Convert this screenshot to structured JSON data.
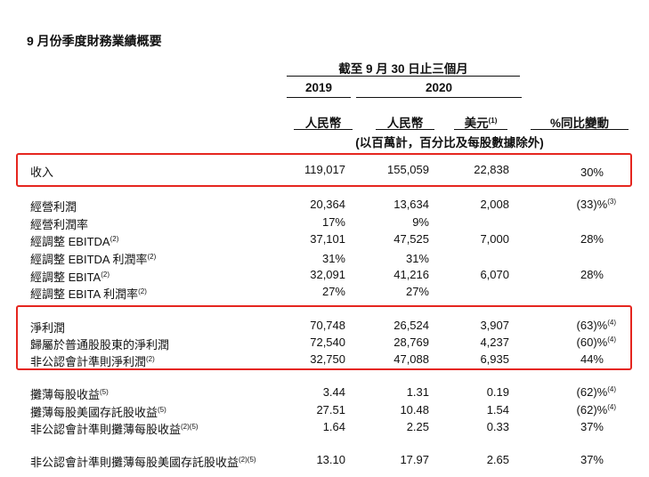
{
  "title": "9 月份季度財務業績概要",
  "header": {
    "period": "截至 9 月 30 日止三個月",
    "year_2019": "2019",
    "year_2020": "2020",
    "cur_rmb_2019": "人民幣",
    "cur_rmb_2020": "人民幣",
    "cur_usd": "美元",
    "cur_usd_note": "(1)",
    "yoy": "%同比變動",
    "units": "(以百萬計，百分比及每股數據除外)"
  },
  "rows": [
    {
      "label": "收入",
      "note": "",
      "v2019": "119,017",
      "v2020": "155,059",
      "usd": "22,838",
      "yoy": "30%",
      "yoy_note": ""
    },
    {
      "label": "經營利潤",
      "note": "",
      "v2019": "20,364",
      "v2020": "13,634",
      "usd": "2,008",
      "yoy": "(33)%",
      "yoy_note": "(3)"
    },
    {
      "label": "經營利潤率",
      "note": "",
      "v2019": "17%",
      "v2020": "9%",
      "usd": "",
      "yoy": "",
      "yoy_note": ""
    },
    {
      "label": "經調整 EBITDA",
      "note": "(2)",
      "v2019": "37,101",
      "v2020": "47,525",
      "usd": "7,000",
      "yoy": "28%",
      "yoy_note": ""
    },
    {
      "label": "經調整 EBITDA 利潤率",
      "note": "(2)",
      "v2019": "31%",
      "v2020": "31%",
      "usd": "",
      "yoy": "",
      "yoy_note": ""
    },
    {
      "label": "經調整 EBITA",
      "note": "(2)",
      "v2019": "32,091",
      "v2020": "41,216",
      "usd": "6,070",
      "yoy": "28%",
      "yoy_note": ""
    },
    {
      "label": "經調整 EBITA 利潤率",
      "note": "(2)",
      "v2019": "27%",
      "v2020": "27%",
      "usd": "",
      "yoy": "",
      "yoy_note": ""
    },
    {
      "label": "淨利潤",
      "note": "",
      "v2019": "70,748",
      "v2020": "26,524",
      "usd": "3,907",
      "yoy": "(63)%",
      "yoy_note": "(4)"
    },
    {
      "label": "歸屬於普通股股東的淨利潤",
      "note": "",
      "v2019": "72,540",
      "v2020": "28,769",
      "usd": "4,237",
      "yoy": "(60)%",
      "yoy_note": "(4)"
    },
    {
      "label": "非公認會計準則淨利潤",
      "note": "(2)",
      "v2019": "32,750",
      "v2020": "47,088",
      "usd": "6,935",
      "yoy": "44%",
      "yoy_note": ""
    },
    {
      "label": "攤薄每股收益",
      "note": "(5)",
      "v2019": "3.44",
      "v2020": "1.31",
      "usd": "0.19",
      "yoy": "(62)%",
      "yoy_note": "(4)"
    },
    {
      "label": "攤薄每股美國存託股收益",
      "note": "(5)",
      "v2019": "27.51",
      "v2020": "10.48",
      "usd": "1.54",
      "yoy": "(62)%",
      "yoy_note": "(4)"
    },
    {
      "label": "非公認會計準則攤薄每股收益",
      "note": "(2)(5)",
      "v2019": "1.64",
      "v2020": "2.25",
      "usd": "0.33",
      "yoy": "37%",
      "yoy_note": ""
    },
    {
      "label": "非公認會計準則攤薄每股美國存託股收益",
      "note": "(2)(5)",
      "v2019": "13.10",
      "v2020": "17.97",
      "usd": "2.65",
      "yoy": "37%",
      "yoy_note": ""
    }
  ],
  "highlight_color": "#e5261f"
}
